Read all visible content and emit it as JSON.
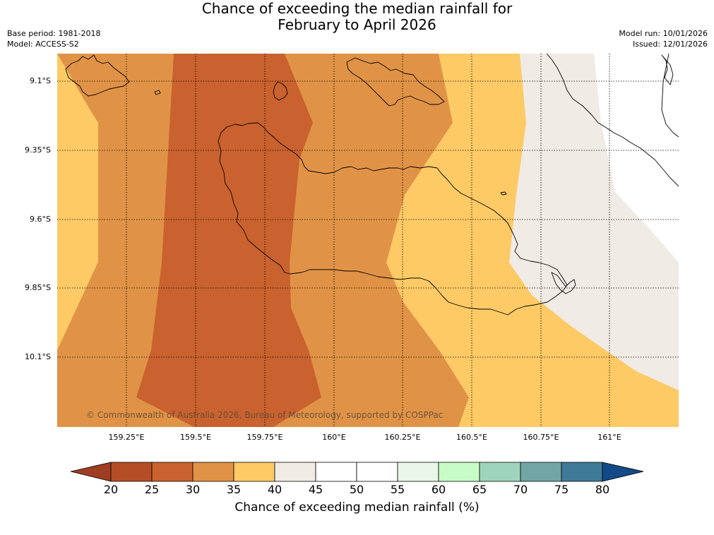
{
  "title": {
    "line1": "Chance of exceeding the median rainfall for",
    "line2": "February to April 2026"
  },
  "meta_left": {
    "base_period": "Base period: 1981-2018",
    "model": "Model: ACCESS-S2"
  },
  "meta_right": {
    "model_run": "Model run: 10/01/2026",
    "issued": "Issued: 12/01/2026"
  },
  "map": {
    "lat_labels": [
      "9.1°S",
      "9.35°S",
      "9.6°S",
      "9.85°S",
      "10.1°S"
    ],
    "lon_labels": [
      "159.25°E",
      "159.5°E",
      "159.75°E",
      "160°E",
      "160.25°E",
      "160.5°E",
      "160.75°E",
      "161°E"
    ],
    "copyright": "© Commonwealth of Australia 2026, Bureau of Meteorology, supported by COSPPac",
    "band_colors": {
      "25-30": "#c9622e",
      "30-35": "#e09346",
      "35-40": "#fdca66",
      "40-45": "#f0ebe5",
      "45-50": "#ffffff"
    }
  },
  "legend": {
    "title": "Chance of exceeding median rainfall (%)",
    "ticks": [
      "20",
      "25",
      "30",
      "35",
      "40",
      "45",
      "50",
      "55",
      "60",
      "65",
      "70",
      "75",
      "80"
    ],
    "colors": [
      "#9e3d22",
      "#b54e27",
      "#c9622e",
      "#e09346",
      "#fdca66",
      "#f0ebe5",
      "#ffffff",
      "#ffffff",
      "#eaf6ea",
      "#c8fcc6",
      "#9fd4bc",
      "#72a6a6",
      "#3f7a98",
      "#124a88"
    ]
  }
}
